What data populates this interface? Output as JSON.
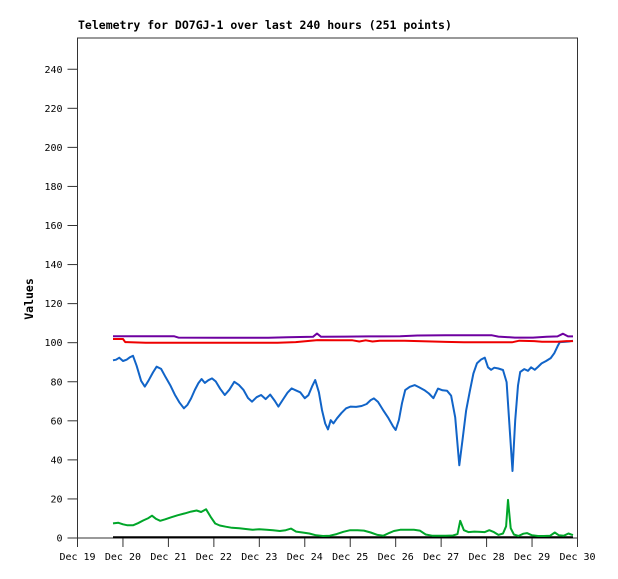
{
  "page": {
    "background": "#ffffff",
    "text_color": "#000000"
  },
  "chart_data": {
    "type": "line",
    "title": "Telemetry for DO7GJ-1 over last 240 hours (251 points)",
    "xlabel": "",
    "ylabel": "Values",
    "x_unit": "date (December, fractional days)",
    "xlim": [
      19,
      30
    ],
    "ylim": [
      0,
      256
    ],
    "grid": false,
    "legend": "none",
    "axis_color": "#333333",
    "y_ticks": [
      0,
      20,
      40,
      60,
      80,
      100,
      120,
      140,
      160,
      180,
      200,
      220,
      240
    ],
    "x_ticks": [
      {
        "value": 19,
        "label": "Dec 19"
      },
      {
        "value": 20,
        "label": "Dec 20"
      },
      {
        "value": 21,
        "label": "Dec 21"
      },
      {
        "value": 22,
        "label": "Dec 22"
      },
      {
        "value": 23,
        "label": "Dec 23"
      },
      {
        "value": 24,
        "label": "Dec 24"
      },
      {
        "value": 25,
        "label": "Dec 25"
      },
      {
        "value": 26,
        "label": "Dec 26"
      },
      {
        "value": 27,
        "label": "Dec 27"
      },
      {
        "value": 28,
        "label": "Dec 28"
      },
      {
        "value": 29,
        "label": "Dec 29"
      },
      {
        "value": 30,
        "label": "Dec 30"
      }
    ],
    "series": [
      {
        "name": "black",
        "color": "#000000",
        "points": [
          [
            19.78,
            0.4
          ],
          [
            29.9,
            0.4
          ]
        ]
      },
      {
        "name": "green",
        "color": "#00A629",
        "points": [
          [
            19.78,
            7.5
          ],
          [
            19.9,
            7.8
          ],
          [
            20.0,
            7.0
          ],
          [
            20.1,
            6.5
          ],
          [
            20.22,
            6.5
          ],
          [
            20.33,
            7.6
          ],
          [
            20.45,
            9.0
          ],
          [
            20.56,
            10.2
          ],
          [
            20.64,
            11.4
          ],
          [
            20.73,
            9.8
          ],
          [
            20.82,
            8.8
          ],
          [
            20.93,
            9.6
          ],
          [
            21.06,
            10.6
          ],
          [
            21.2,
            11.6
          ],
          [
            21.36,
            12.6
          ],
          [
            21.5,
            13.5
          ],
          [
            21.62,
            14.1
          ],
          [
            21.72,
            13.3
          ],
          [
            21.83,
            14.7
          ],
          [
            21.93,
            10.8
          ],
          [
            22.03,
            7.4
          ],
          [
            22.13,
            6.4
          ],
          [
            22.26,
            5.8
          ],
          [
            22.4,
            5.2
          ],
          [
            22.56,
            5.0
          ],
          [
            22.7,
            4.6
          ],
          [
            22.85,
            4.2
          ],
          [
            23.0,
            4.5
          ],
          [
            23.16,
            4.2
          ],
          [
            23.3,
            4.0
          ],
          [
            23.45,
            3.6
          ],
          [
            23.58,
            4.0
          ],
          [
            23.7,
            4.8
          ],
          [
            23.81,
            3.3
          ],
          [
            23.95,
            2.8
          ],
          [
            24.1,
            2.3
          ],
          [
            24.25,
            1.4
          ],
          [
            24.4,
            1.0
          ],
          [
            24.55,
            1.2
          ],
          [
            24.7,
            2.0
          ],
          [
            24.85,
            3.2
          ],
          [
            25.0,
            4.0
          ],
          [
            25.16,
            4.0
          ],
          [
            25.3,
            3.8
          ],
          [
            25.45,
            2.8
          ],
          [
            25.6,
            1.6
          ],
          [
            25.73,
            1.2
          ],
          [
            25.86,
            2.6
          ],
          [
            25.96,
            3.6
          ],
          [
            26.1,
            4.2
          ],
          [
            26.26,
            4.2
          ],
          [
            26.4,
            4.2
          ],
          [
            26.53,
            3.8
          ],
          [
            26.66,
            1.8
          ],
          [
            26.8,
            1.2
          ],
          [
            26.96,
            1.2
          ],
          [
            27.1,
            1.2
          ],
          [
            27.26,
            1.3
          ],
          [
            27.36,
            2.0
          ],
          [
            27.42,
            8.8
          ],
          [
            27.5,
            4.0
          ],
          [
            27.6,
            3.0
          ],
          [
            27.73,
            3.3
          ],
          [
            27.86,
            3.1
          ],
          [
            27.96,
            3.0
          ],
          [
            28.06,
            4.0
          ],
          [
            28.16,
            3.0
          ],
          [
            28.26,
            1.6
          ],
          [
            28.36,
            2.3
          ],
          [
            28.43,
            6.0
          ],
          [
            28.47,
            19.5
          ],
          [
            28.53,
            5.0
          ],
          [
            28.6,
            1.8
          ],
          [
            28.7,
            1.0
          ],
          [
            28.81,
            2.2
          ],
          [
            28.89,
            2.5
          ],
          [
            29.0,
            1.4
          ],
          [
            29.13,
            1.0
          ],
          [
            29.26,
            1.0
          ],
          [
            29.4,
            1.2
          ],
          [
            29.5,
            2.8
          ],
          [
            29.59,
            1.4
          ],
          [
            29.7,
            1.2
          ],
          [
            29.8,
            2.3
          ],
          [
            29.86,
            1.8
          ],
          [
            29.9,
            1.5
          ]
        ]
      },
      {
        "name": "blue",
        "color": "#1164C8",
        "points": [
          [
            19.78,
            91.0
          ],
          [
            19.85,
            91.3
          ],
          [
            19.92,
            92.3
          ],
          [
            20.0,
            90.6
          ],
          [
            20.08,
            91.3
          ],
          [
            20.16,
            92.6
          ],
          [
            20.22,
            93.3
          ],
          [
            20.3,
            88.2
          ],
          [
            20.4,
            80.5
          ],
          [
            20.48,
            77.5
          ],
          [
            20.56,
            80.5
          ],
          [
            20.66,
            84.8
          ],
          [
            20.74,
            87.7
          ],
          [
            20.84,
            86.6
          ],
          [
            20.94,
            82.3
          ],
          [
            21.04,
            78.3
          ],
          [
            21.14,
            73.4
          ],
          [
            21.24,
            69.5
          ],
          [
            21.34,
            66.4
          ],
          [
            21.42,
            68.2
          ],
          [
            21.5,
            71.5
          ],
          [
            21.58,
            75.8
          ],
          [
            21.66,
            79.3
          ],
          [
            21.73,
            81.4
          ],
          [
            21.8,
            79.4
          ],
          [
            21.88,
            80.8
          ],
          [
            21.96,
            81.7
          ],
          [
            22.04,
            80.2
          ],
          [
            22.14,
            76.4
          ],
          [
            22.24,
            73.2
          ],
          [
            22.34,
            75.9
          ],
          [
            22.45,
            80.0
          ],
          [
            22.55,
            78.4
          ],
          [
            22.65,
            75.9
          ],
          [
            22.75,
            71.7
          ],
          [
            22.84,
            69.8
          ],
          [
            22.94,
            72.1
          ],
          [
            23.04,
            73.2
          ],
          [
            23.14,
            71.1
          ],
          [
            23.24,
            73.4
          ],
          [
            23.34,
            70.2
          ],
          [
            23.42,
            67.3
          ],
          [
            23.52,
            70.9
          ],
          [
            23.62,
            74.4
          ],
          [
            23.71,
            76.6
          ],
          [
            23.8,
            75.6
          ],
          [
            23.9,
            74.6
          ],
          [
            24.0,
            71.6
          ],
          [
            24.08,
            73.1
          ],
          [
            24.16,
            77.5
          ],
          [
            24.23,
            80.9
          ],
          [
            24.31,
            74.6
          ],
          [
            24.38,
            65.5
          ],
          [
            24.45,
            58.6
          ],
          [
            24.51,
            55.6
          ],
          [
            24.57,
            60.3
          ],
          [
            24.63,
            58.7
          ],
          [
            24.71,
            61.3
          ],
          [
            24.81,
            64.1
          ],
          [
            24.91,
            66.4
          ],
          [
            25.01,
            67.3
          ],
          [
            25.13,
            67.1
          ],
          [
            25.25,
            67.6
          ],
          [
            25.36,
            68.6
          ],
          [
            25.45,
            70.6
          ],
          [
            25.52,
            71.5
          ],
          [
            25.61,
            69.7
          ],
          [
            25.72,
            65.6
          ],
          [
            25.84,
            61.4
          ],
          [
            25.94,
            57.2
          ],
          [
            26.0,
            55.3
          ],
          [
            26.07,
            60.4
          ],
          [
            26.14,
            69.0
          ],
          [
            26.21,
            75.7
          ],
          [
            26.31,
            77.4
          ],
          [
            26.42,
            78.3
          ],
          [
            26.52,
            77.1
          ],
          [
            26.63,
            75.7
          ],
          [
            26.73,
            74.0
          ],
          [
            26.83,
            71.6
          ],
          [
            26.93,
            76.5
          ],
          [
            27.03,
            75.6
          ],
          [
            27.13,
            75.4
          ],
          [
            27.22,
            72.9
          ],
          [
            27.31,
            61.8
          ],
          [
            27.4,
            37.2
          ],
          [
            27.47,
            50.2
          ],
          [
            27.55,
            65.2
          ],
          [
            27.63,
            75.1
          ],
          [
            27.71,
            84.2
          ],
          [
            27.79,
            89.5
          ],
          [
            27.88,
            91.4
          ],
          [
            27.96,
            92.3
          ],
          [
            28.03,
            87.4
          ],
          [
            28.1,
            86.1
          ],
          [
            28.17,
            87.2
          ],
          [
            28.26,
            86.8
          ],
          [
            28.36,
            86.0
          ],
          [
            28.44,
            79.8
          ],
          [
            28.51,
            55.1
          ],
          [
            28.57,
            34.3
          ],
          [
            28.63,
            60.2
          ],
          [
            28.69,
            78.1
          ],
          [
            28.74,
            85.0
          ],
          [
            28.83,
            86.5
          ],
          [
            28.91,
            85.6
          ],
          [
            28.98,
            87.4
          ],
          [
            29.06,
            86.1
          ],
          [
            29.13,
            87.6
          ],
          [
            29.21,
            89.4
          ],
          [
            29.31,
            90.6
          ],
          [
            29.41,
            92.1
          ],
          [
            29.49,
            94.6
          ],
          [
            29.56,
            98.1
          ],
          [
            29.61,
            100.3
          ],
          [
            29.71,
            100.4
          ],
          [
            29.81,
            100.6
          ],
          [
            29.9,
            101.0
          ]
        ]
      },
      {
        "name": "red",
        "color": "#EE0000",
        "points": [
          [
            19.78,
            101.9
          ],
          [
            20.0,
            101.9
          ],
          [
            20.05,
            100.3
          ],
          [
            20.5,
            100.0
          ],
          [
            21.5,
            100.0
          ],
          [
            22.5,
            100.0
          ],
          [
            23.4,
            100.0
          ],
          [
            23.8,
            100.3
          ],
          [
            24.28,
            101.3
          ],
          [
            24.7,
            101.2
          ],
          [
            25.05,
            101.2
          ],
          [
            25.2,
            100.6
          ],
          [
            25.34,
            101.2
          ],
          [
            25.49,
            100.6
          ],
          [
            25.65,
            101.0
          ],
          [
            26.2,
            101.0
          ],
          [
            26.6,
            100.7
          ],
          [
            27.1,
            100.4
          ],
          [
            27.5,
            100.2
          ],
          [
            28.1,
            100.2
          ],
          [
            28.56,
            100.2
          ],
          [
            28.72,
            101.0
          ],
          [
            29.05,
            100.8
          ],
          [
            29.22,
            100.5
          ],
          [
            29.56,
            100.5
          ],
          [
            29.76,
            100.8
          ],
          [
            29.9,
            100.8
          ]
        ]
      },
      {
        "name": "purple",
        "color": "#6E00A0",
        "points": [
          [
            19.78,
            103.3
          ],
          [
            20.4,
            103.3
          ],
          [
            21.12,
            103.3
          ],
          [
            21.22,
            102.6
          ],
          [
            22.1,
            102.5
          ],
          [
            23.2,
            102.5
          ],
          [
            23.62,
            102.8
          ],
          [
            24.18,
            103.0
          ],
          [
            24.27,
            104.7
          ],
          [
            24.36,
            103.0
          ],
          [
            24.9,
            103.1
          ],
          [
            25.4,
            103.2
          ],
          [
            26.1,
            103.3
          ],
          [
            26.48,
            103.7
          ],
          [
            27.1,
            103.8
          ],
          [
            27.7,
            103.8
          ],
          [
            28.12,
            103.8
          ],
          [
            28.26,
            103.1
          ],
          [
            28.62,
            102.6
          ],
          [
            29.02,
            102.6
          ],
          [
            29.32,
            103.0
          ],
          [
            29.56,
            103.2
          ],
          [
            29.68,
            104.6
          ],
          [
            29.79,
            103.2
          ],
          [
            29.9,
            103.2
          ]
        ]
      }
    ]
  }
}
